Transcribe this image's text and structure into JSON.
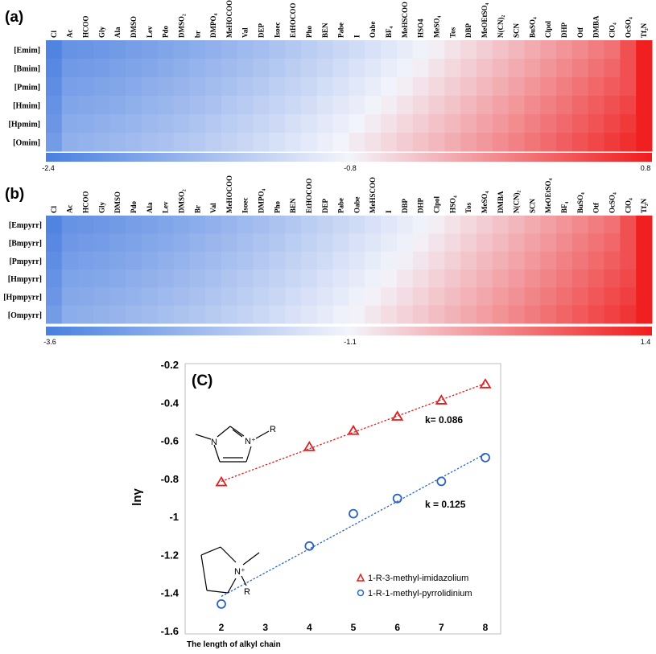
{
  "chart_data": [
    {
      "type": "heatmap",
      "panel_label": "(a)",
      "columns": [
        "Cl",
        "Ac",
        "HCOO",
        "Gly",
        "Ala",
        "DMSO",
        "Lev",
        "Pdo",
        "DMSO₂",
        "br",
        "DMPO₄",
        "MeHOCOO",
        "Val",
        "DEP",
        "Isoec",
        "EtHOCOO",
        "Pho",
        "BEN",
        "Pabe",
        "I",
        "Oabe",
        "BF₄",
        "MeHSCOO",
        "HSO4",
        "MeSO₄",
        "Tos",
        "DBP",
        "MeOEtSO₄",
        "N(CN)₂",
        "SCN",
        "BuSO₄",
        "Clpol",
        "DHP",
        "Otf",
        "DMBA",
        "ClO₄",
        "OcSO₄",
        "Tf₂N"
      ],
      "rows": [
        "[Emim]",
        "[Bmim]",
        "[Pmim]",
        "[Hmim]",
        "[Hpmim]",
        "[Omim]"
      ],
      "colorbar": {
        "min": -2.4,
        "mid": -0.8,
        "max": 0.8,
        "labels": [
          "-2.4",
          "-0.8",
          "0.8"
        ],
        "colors": {
          "low": "#4a7fe0",
          "mid": "#f3f4fb",
          "high": "#f01c1c"
        }
      }
    },
    {
      "type": "heatmap",
      "panel_label": "(b)",
      "columns": [
        "Cl",
        "Ac",
        "HCOO",
        "Gly",
        "DMSO",
        "Pdo",
        "Ala",
        "Lev",
        "DMSO₂",
        "Br",
        "Val",
        "MeHOCOO",
        "Isoec",
        "DMPO₄",
        "Pho",
        "BEN",
        "EtHOCOO",
        "DEP",
        "Pabe",
        "Oabe",
        "MeHSCOO",
        "I",
        "DBP",
        "DHP",
        "Clpol",
        "HSO₄",
        "Tos",
        "MeSO₄",
        "DMBA",
        "N(CN)₂",
        "SCN",
        "MeOEtSO₄",
        "BF₄",
        "BuSO₄",
        "Otf",
        "OcSO₄",
        "ClO₄",
        "Tf₂N"
      ],
      "rows": [
        "[Empyrr]",
        "[Bmpyrr]",
        "[Pmpyrr]",
        "[Hmpyrr]",
        "[Hpmpyrr]",
        "[Ompyrr]"
      ],
      "colorbar": {
        "min": -3.6,
        "mid": -1.1,
        "max": 1.4,
        "labels": [
          "-3.6",
          "-1.1",
          "1.4"
        ],
        "colors": {
          "low": "#4a7fe0",
          "mid": "#f3f4fb",
          "high": "#f01c1c"
        }
      }
    },
    {
      "type": "scatter",
      "panel_label": "(C)",
      "xlabel": "The length of alkyl chain",
      "ylabel": "lnγ",
      "xlim": [
        1.5,
        8.5
      ],
      "ylim": [
        -1.6,
        -0.2
      ],
      "xticks": [
        "2",
        "3",
        "4",
        "5",
        "6",
        "7",
        "8"
      ],
      "yticks": [
        "-0.2",
        "-0.4",
        "-0.6",
        "-0.8",
        "-1",
        "-1.2",
        "-1.4",
        "-1.6"
      ],
      "series": [
        {
          "name": "1-R-3-methyl-imidazolium",
          "marker": "triangle",
          "color": "#e02020",
          "x": [
            2,
            4,
            5,
            6,
            7,
            8
          ],
          "y": [
            -0.82,
            -0.635,
            -0.55,
            -0.475,
            -0.39,
            -0.305
          ],
          "fit_label": "k= 0.086",
          "fit": [
            [
              2,
              -0.815
            ],
            [
              8,
              -0.3
            ]
          ]
        },
        {
          "name": "1-R-1-methyl-pyrrolidinium",
          "marker": "circle",
          "color": "#2a62c8",
          "x": [
            2,
            4,
            5,
            6,
            7,
            8
          ],
          "y": [
            -1.46,
            -1.155,
            -0.985,
            -0.905,
            -0.815,
            -0.69
          ],
          "fit_label": "k = 0.125",
          "fit": [
            [
              2,
              -1.42
            ],
            [
              8,
              -0.67
            ]
          ]
        }
      ],
      "structure_labels": {
        "imidazolium": {
          "n": "N",
          "nplus": "N⁺",
          "r": "R"
        },
        "pyrrolidinium": {
          "nplus": "N⁺",
          "r": "R"
        }
      }
    }
  ]
}
